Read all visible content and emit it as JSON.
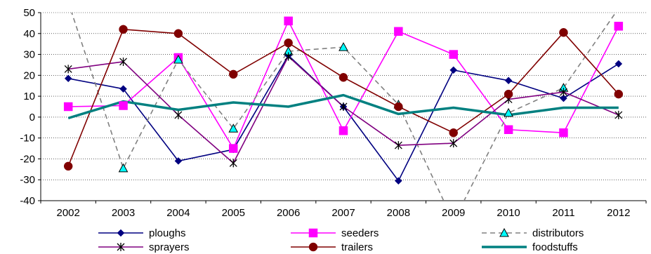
{
  "chart_data": {
    "type": "line",
    "title": "",
    "xlabel": "",
    "ylabel": "",
    "x": [
      "2002",
      "2003",
      "2004",
      "2005",
      "2006",
      "2007",
      "2008",
      "2009",
      "2010",
      "2011",
      "2012"
    ],
    "ylim": [
      -40,
      50
    ],
    "yticks": [
      50,
      40,
      30,
      20,
      10,
      0,
      -10,
      -20,
      -30,
      -40
    ],
    "grid": "horizontal dotted",
    "legend_position": "bottom",
    "series": [
      {
        "name": "ploughs",
        "color": "#000080",
        "marker": "diamond",
        "dash": "solid",
        "values": [
          18.5,
          13.5,
          -21,
          -15.5,
          29.5,
          5,
          -30.5,
          22.5,
          17.5,
          9,
          25.5
        ]
      },
      {
        "name": "seeders",
        "color": "#ff00ff",
        "marker": "square",
        "dash": "solid",
        "values": [
          5,
          5.5,
          28.5,
          -15,
          46,
          -6.5,
          41,
          30,
          -6,
          -7.5,
          43.5
        ]
      },
      {
        "name": "distributors",
        "color": "#808080",
        "marker": "triangle",
        "dash": "dashed",
        "values": [
          55,
          -24.5,
          27.5,
          -5.5,
          31.5,
          33.5,
          6,
          -50,
          2,
          14,
          52
        ]
      },
      {
        "name": "sprayers",
        "color": "#800080",
        "marker": "star",
        "dash": "solid",
        "values": [
          23,
          26.5,
          1,
          -22,
          29,
          5,
          -13.5,
          -12.5,
          8.5,
          12,
          1
        ]
      },
      {
        "name": "trailers",
        "color": "#800000",
        "marker": "circle",
        "dash": "solid",
        "values": [
          -23.5,
          42,
          40,
          20.5,
          35.5,
          19,
          5,
          -7.5,
          11,
          40.5,
          11
        ]
      },
      {
        "name": "foodstuffs",
        "color": "#008080",
        "marker": "none",
        "dash": "solid",
        "values": [
          -0.5,
          7.5,
          3.5,
          7,
          5,
          10.5,
          1.5,
          4.5,
          1,
          4.5,
          4.5
        ]
      }
    ]
  }
}
